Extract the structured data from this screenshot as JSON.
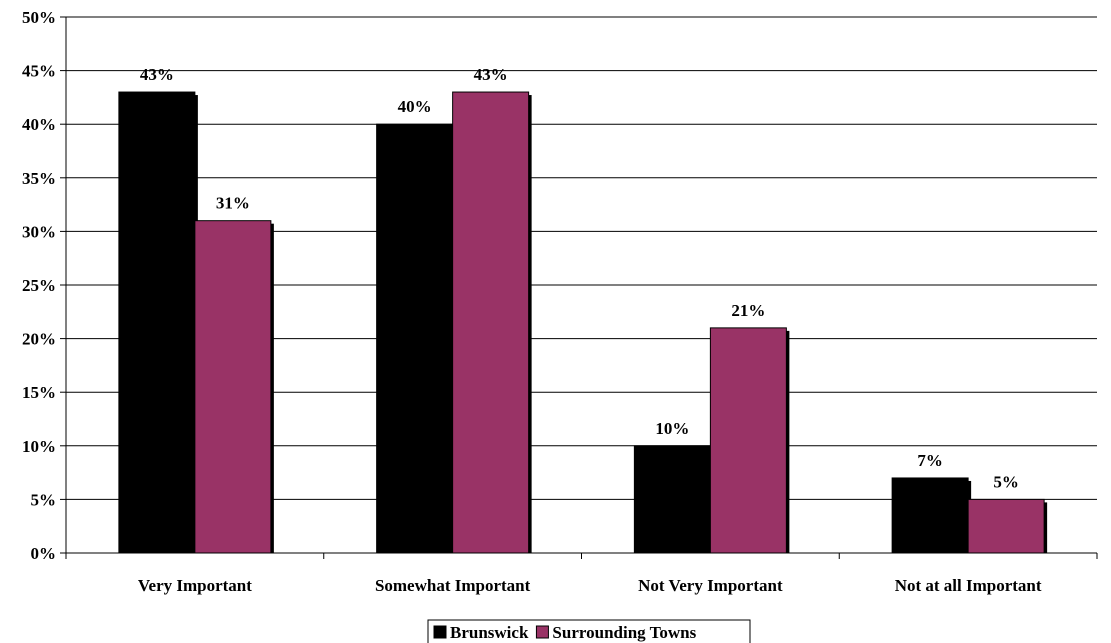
{
  "chart_data": {
    "type": "bar",
    "categories": [
      "Very Important",
      "Somewhat Important",
      "Not Very Important",
      "Not at all Important"
    ],
    "series": [
      {
        "name": "Brunswick",
        "values": [
          43,
          40,
          10,
          7
        ],
        "labels": [
          "43%",
          "40%",
          "10%",
          "7%"
        ],
        "color": "#000000"
      },
      {
        "name": "Surrounding Towns",
        "values": [
          31,
          43,
          21,
          5
        ],
        "labels": [
          "31%",
          "43%",
          "21%",
          "5%"
        ],
        "color": "#993366"
      }
    ],
    "ylim": [
      0,
      50
    ],
    "yticks": [
      0,
      5,
      10,
      15,
      20,
      25,
      30,
      35,
      40,
      45,
      50
    ],
    "ytick_labels": [
      "0%",
      "5%",
      "10%",
      "15%",
      "20%",
      "25%",
      "30%",
      "35%",
      "40%",
      "45%",
      "50%"
    ],
    "grid": true,
    "legend_position": "bottom-center",
    "title": "",
    "xlabel": "",
    "ylabel": ""
  }
}
